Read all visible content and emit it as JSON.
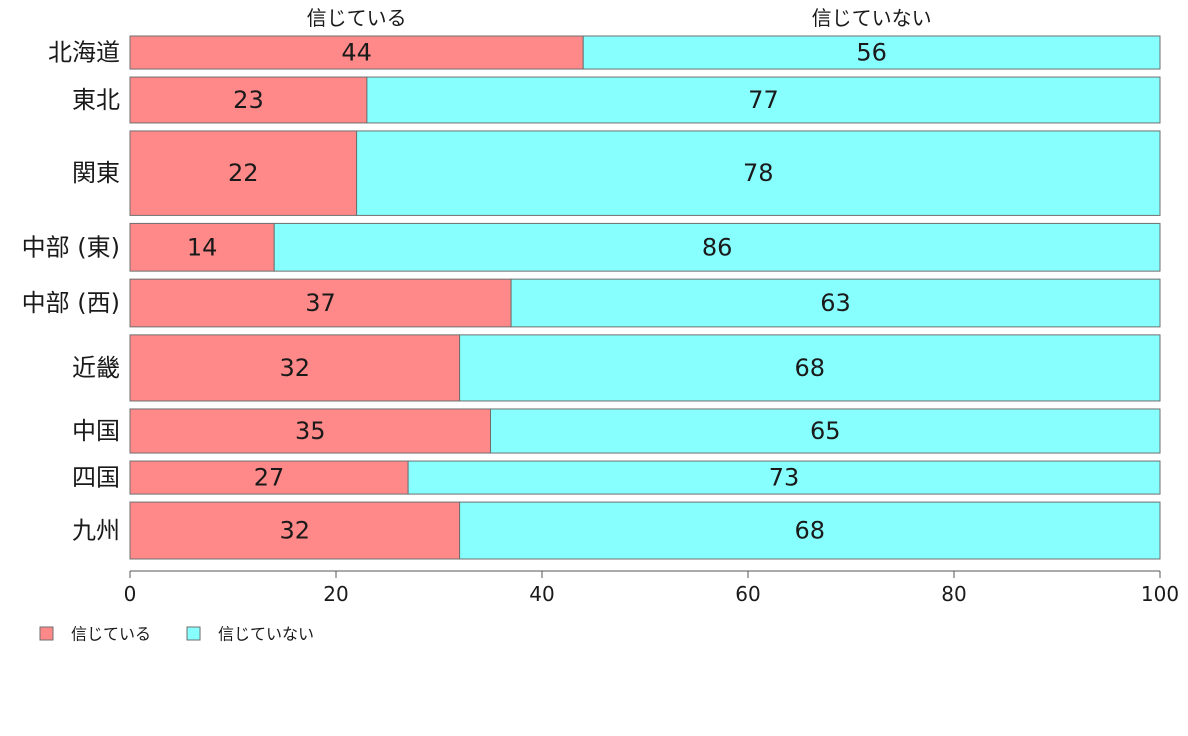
{
  "chart_data": {
    "type": "bar",
    "orientation": "horizontal",
    "stacked": "percent",
    "categories": [
      "北海道",
      "東北",
      "関東",
      "中部 (東)",
      "中部 (西)",
      "近畿",
      "中国",
      "四国",
      "九州"
    ],
    "category_weights": [
      0.9,
      1.25,
      2.3,
      1.3,
      1.3,
      1.8,
      1.2,
      0.9,
      1.55
    ],
    "series": [
      {
        "name": "信じている",
        "values": [
          44,
          23,
          22,
          14,
          37,
          32,
          35,
          27,
          32
        ],
        "color": "#ff8888"
      },
      {
        "name": "信じていない",
        "values": [
          56,
          77,
          78,
          86,
          63,
          68,
          65,
          73,
          68
        ],
        "color": "#88ffff"
      }
    ],
    "top_labels": [
      "信じている",
      "信じていない"
    ],
    "xticks": [
      0,
      20,
      40,
      60,
      80,
      100
    ],
    "xlim": [
      0,
      100
    ],
    "grid": false,
    "legend": {
      "placement": "bottom-left",
      "items": [
        "信じている",
        "信じていない"
      ]
    }
  }
}
